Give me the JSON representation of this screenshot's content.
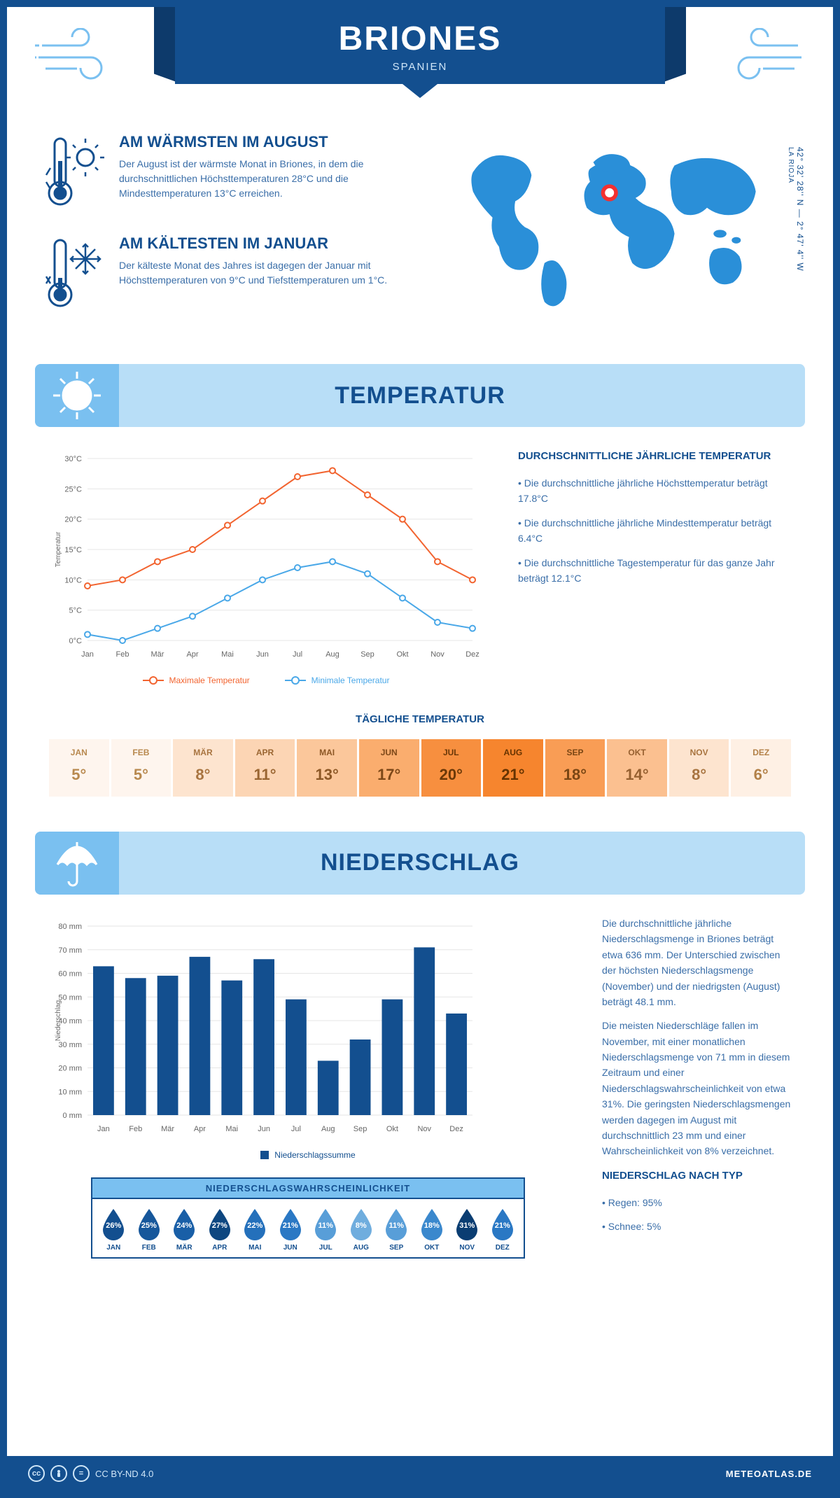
{
  "header": {
    "title": "BRIONES",
    "subtitle": "SPANIEN"
  },
  "coords": {
    "lat": "42° 32' 28'' N",
    "lon": "2° 47' 4'' W",
    "region": "LA RIOJA"
  },
  "facts": {
    "warm": {
      "title": "AM WÄRMSTEN IM AUGUST",
      "text": "Der August ist der wärmste Monat in Briones, in dem die durchschnittlichen Höchsttemperaturen 28°C und die Mindesttemperaturen 13°C erreichen."
    },
    "cold": {
      "title": "AM KÄLTESTEN IM JANUAR",
      "text": "Der kälteste Monat des Jahres ist dagegen der Januar mit Höchsttemperaturen von 9°C und Tiefsttemperaturen um 1°C."
    }
  },
  "sections": {
    "temperature": "TEMPERATUR",
    "precipitation": "NIEDERSCHLAG"
  },
  "temp_chart": {
    "type": "line",
    "months": [
      "Jan",
      "Feb",
      "Mär",
      "Apr",
      "Mai",
      "Jun",
      "Jul",
      "Aug",
      "Sep",
      "Okt",
      "Nov",
      "Dez"
    ],
    "max": [
      9,
      10,
      13,
      15,
      19,
      23,
      27,
      28,
      24,
      20,
      13,
      10
    ],
    "min": [
      1,
      0,
      2,
      4,
      7,
      10,
      12,
      13,
      11,
      7,
      3,
      2
    ],
    "ylim": [
      0,
      30
    ],
    "ytick_step": 5,
    "yunit": "°C",
    "ylabel": "Temperatur",
    "colors": {
      "max": "#f26430",
      "min": "#4aa8e8",
      "grid": "#e6e6e6",
      "axis": "#444"
    },
    "line_width": 2,
    "marker": "circle",
    "legend": {
      "max": "Maximale Temperatur",
      "min": "Minimale Temperatur"
    },
    "font_size": 11
  },
  "temp_text": {
    "heading": "DURCHSCHNITTLICHE JÄHRLICHE TEMPERATUR",
    "bullets": [
      "• Die durchschnittliche jährliche Höchsttemperatur beträgt 17.8°C",
      "• Die durchschnittliche jährliche Mindesttemperatur beträgt 6.4°C",
      "• Die durchschnittliche Tagestemperatur für das ganze Jahr beträgt 12.1°C"
    ]
  },
  "daily_temp": {
    "heading": "TÄGLICHE TEMPERATUR",
    "months": [
      "JAN",
      "FEB",
      "MÄR",
      "APR",
      "MAI",
      "JUN",
      "JUL",
      "AUG",
      "SEP",
      "OKT",
      "NOV",
      "DEZ"
    ],
    "values": [
      "5°",
      "5°",
      "8°",
      "11°",
      "13°",
      "17°",
      "20°",
      "21°",
      "18°",
      "14°",
      "8°",
      "6°"
    ],
    "bg_colors": [
      "#fef5ee",
      "#fef5ee",
      "#fde4cf",
      "#fcd5b4",
      "#fbc79b",
      "#faad6e",
      "#f78f3f",
      "#f6852e",
      "#f99d55",
      "#fbc090",
      "#fde4cf",
      "#fef0e4"
    ],
    "text_colors": [
      "#b8894f",
      "#b8894f",
      "#a87440",
      "#9a6632",
      "#8d5826",
      "#7d4818",
      "#6b3808",
      "#663300",
      "#7a4614",
      "#966030",
      "#a87440",
      "#b38148"
    ]
  },
  "precip_chart": {
    "type": "bar",
    "months": [
      "Jan",
      "Feb",
      "Mär",
      "Apr",
      "Mai",
      "Jun",
      "Jul",
      "Aug",
      "Sep",
      "Okt",
      "Nov",
      "Dez"
    ],
    "values": [
      63,
      58,
      59,
      67,
      57,
      66,
      49,
      23,
      32,
      49,
      71,
      43
    ],
    "ylim": [
      0,
      80
    ],
    "ytick_step": 10,
    "yunit": " mm",
    "ylabel": "Niederschlag",
    "bar_color": "#134f8f",
    "grid_color": "#e6e6e6",
    "bar_width": 0.65,
    "legend": "Niederschlagssumme",
    "font_size": 11
  },
  "precip_text": {
    "p1": "Die durchschnittliche jährliche Niederschlagsmenge in Briones beträgt etwa 636 mm. Der Unterschied zwischen der höchsten Niederschlagsmenge (November) und der niedrigsten (August) beträgt 48.1 mm.",
    "p2": "Die meisten Niederschläge fallen im November, mit einer monatlichen Niederschlagsmenge von 71 mm in diesem Zeitraum und einer Niederschlagswahrscheinlichkeit von etwa 31%. Die geringsten Niederschlagsmengen werden dagegen im August mit durchschnittlich 23 mm und einer Wahrscheinlichkeit von 8% verzeichnet.",
    "type_heading": "NIEDERSCHLAG NACH TYP",
    "type_bullets": [
      "• Regen: 95%",
      "• Schnee: 5%"
    ]
  },
  "precip_prob": {
    "heading": "NIEDERSCHLAGSWAHRSCHEINLICHKEIT",
    "months": [
      "JAN",
      "FEB",
      "MÄR",
      "APR",
      "MAI",
      "JUN",
      "JUL",
      "AUG",
      "SEP",
      "OKT",
      "NOV",
      "DEZ"
    ],
    "values": [
      "26%",
      "25%",
      "24%",
      "27%",
      "22%",
      "21%",
      "11%",
      "8%",
      "11%",
      "18%",
      "31%",
      "21%"
    ],
    "colors": [
      "#134f8f",
      "#16579b",
      "#195fa7",
      "#0e4780",
      "#2470bb",
      "#2a78c4",
      "#589ed8",
      "#6fadde",
      "#589ed8",
      "#3a88cd",
      "#0a3d72",
      "#2a78c4"
    ]
  },
  "footer": {
    "license": "CC BY-ND 4.0",
    "site": "METEOATLAS.DE"
  },
  "colors": {
    "primary": "#134f8f",
    "primary_dark": "#0d3a6b",
    "light": "#b8def7",
    "mid": "#7ac0f0",
    "accent": "#f26430",
    "background": "#ffffff"
  }
}
